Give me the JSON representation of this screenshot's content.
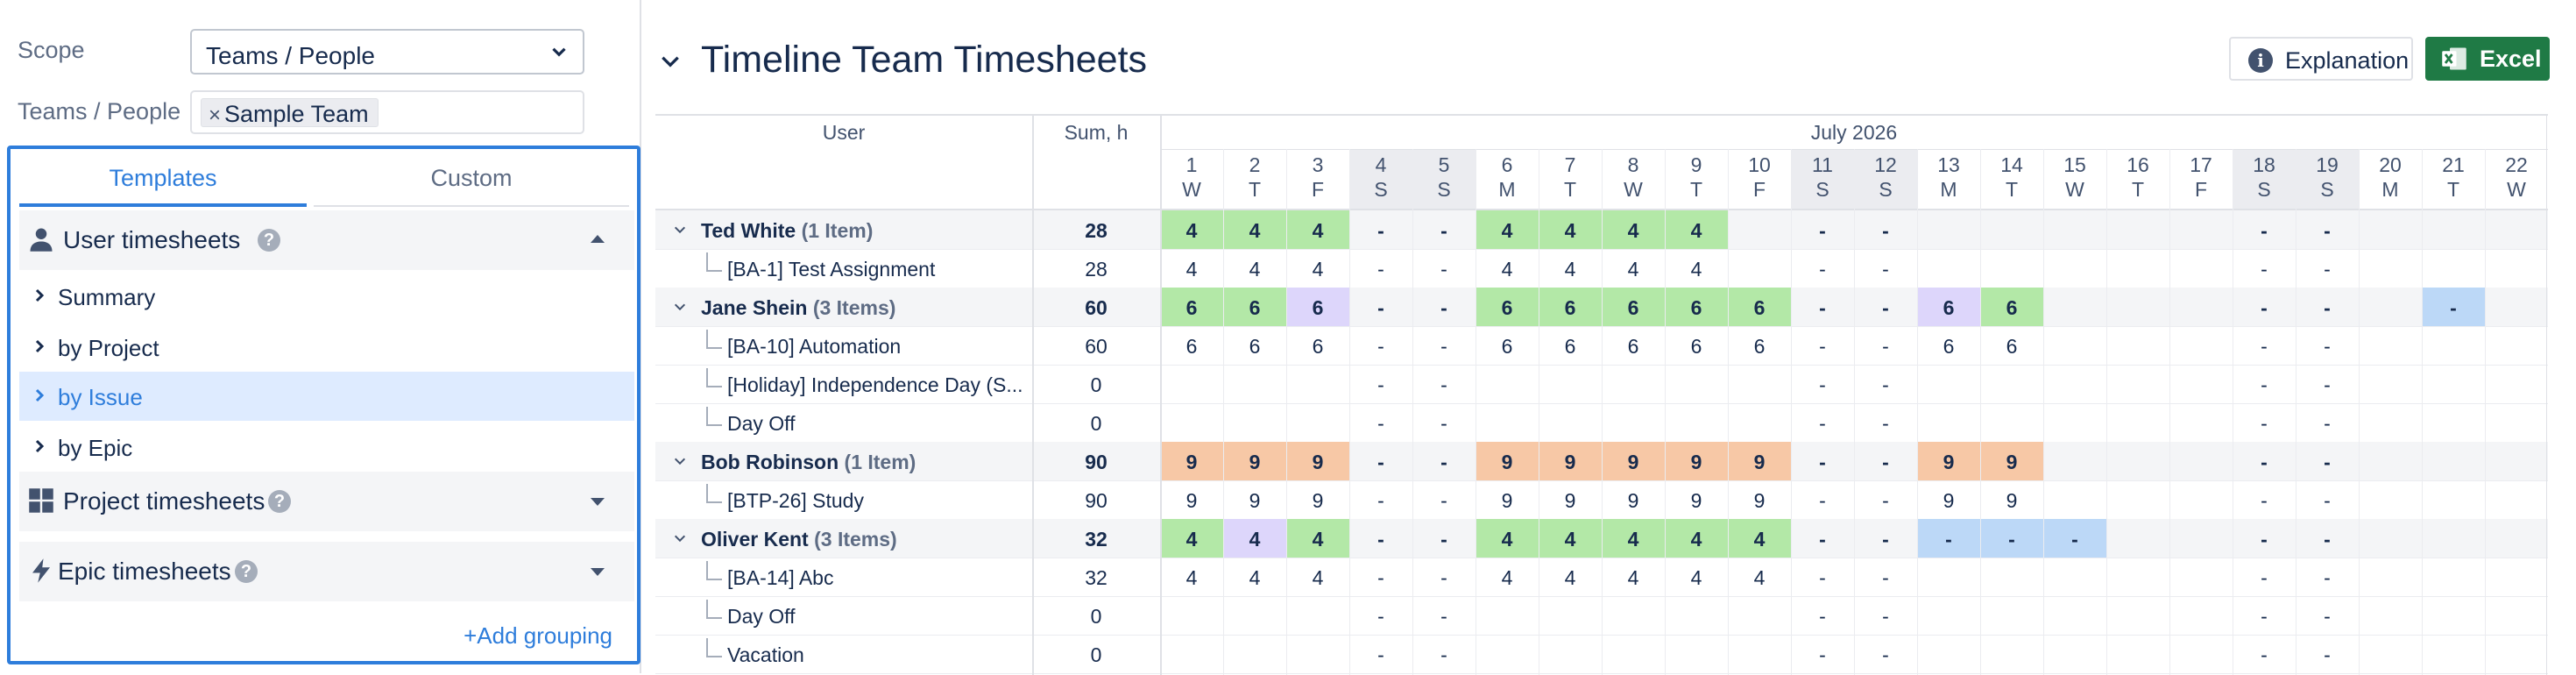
{
  "filters": {
    "scope_label": "Scope",
    "scope_value": "Teams / People",
    "teams_label": "Teams / People",
    "team_tag": "Sample Team",
    "tag_remove": "×"
  },
  "templates": {
    "tabs": [
      "Templates",
      "Custom"
    ],
    "sections": [
      {
        "name": "User timesheets",
        "icon": "person-icon",
        "expanded": true,
        "items": [
          "Summary",
          "by Project",
          "by Issue",
          "by Epic"
        ],
        "active_item": "by Issue"
      },
      {
        "name": "Project timesheets",
        "icon": "grid-icon",
        "expanded": false
      },
      {
        "name": "Epic timesheets",
        "icon": "bolt-icon",
        "expanded": false
      }
    ],
    "help_glyph": "?",
    "add_grouping": "+Add grouping"
  },
  "report": {
    "title": "Timeline Team Timesheets",
    "explanation_btn": "Explanation",
    "info_glyph": "i",
    "excel_btn": "Excel",
    "col_user": "User",
    "col_sum": "Sum, h",
    "month": "July 2026",
    "days": [
      {
        "d": "1",
        "w": "W",
        "we": false
      },
      {
        "d": "2",
        "w": "T",
        "we": false
      },
      {
        "d": "3",
        "w": "F",
        "we": false
      },
      {
        "d": "4",
        "w": "S",
        "we": true
      },
      {
        "d": "5",
        "w": "S",
        "we": true
      },
      {
        "d": "6",
        "w": "M",
        "we": false
      },
      {
        "d": "7",
        "w": "T",
        "we": false
      },
      {
        "d": "8",
        "w": "W",
        "we": false
      },
      {
        "d": "9",
        "w": "T",
        "we": false
      },
      {
        "d": "10",
        "w": "F",
        "we": false
      },
      {
        "d": "11",
        "w": "S",
        "we": true
      },
      {
        "d": "12",
        "w": "S",
        "we": true
      },
      {
        "d": "13",
        "w": "M",
        "we": false
      },
      {
        "d": "14",
        "w": "T",
        "we": false
      },
      {
        "d": "15",
        "w": "W",
        "we": false
      },
      {
        "d": "16",
        "w": "T",
        "we": false
      },
      {
        "d": "17",
        "w": "F",
        "we": false
      },
      {
        "d": "18",
        "w": "S",
        "we": true
      },
      {
        "d": "19",
        "w": "S",
        "we": true
      },
      {
        "d": "20",
        "w": "M",
        "we": false
      },
      {
        "d": "21",
        "w": "T",
        "we": false
      },
      {
        "d": "22",
        "w": "W",
        "we": false
      }
    ],
    "colors": {
      "green": "#b3e8a7",
      "purple": "#ddd6fb",
      "orange": "#f7c8a6",
      "blue": "#bcd8f7",
      "weekend": "#ebecf0",
      "userrow": "#f4f5f7"
    },
    "rows": [
      {
        "type": "user",
        "name": "Ted White",
        "count": "(1 Item)",
        "sum": "28",
        "cells": [
          "4",
          "4",
          "4",
          "-",
          "-",
          "4",
          "4",
          "4",
          "4",
          "",
          "-",
          "-",
          "",
          "",
          "",
          "",
          "",
          "-",
          "-",
          "",
          "",
          ""
        ],
        "colors": [
          "green",
          "green",
          "green",
          "",
          "",
          "green",
          "green",
          "green",
          "green",
          "",
          "",
          "",
          "",
          "",
          "",
          "",
          "",
          "",
          "",
          "",
          "",
          ""
        ]
      },
      {
        "type": "item",
        "name": "[BA-1] Test Assignment",
        "sum": "28",
        "cells": [
          "4",
          "4",
          "4",
          "-",
          "-",
          "4",
          "4",
          "4",
          "4",
          "",
          "-",
          "-",
          "",
          "",
          "",
          "",
          "",
          "-",
          "-",
          "",
          "",
          ""
        ]
      },
      {
        "type": "user",
        "name": "Jane Shein",
        "count": "(3 Items)",
        "sum": "60",
        "cells": [
          "6",
          "6",
          "6",
          "-",
          "-",
          "6",
          "6",
          "6",
          "6",
          "6",
          "-",
          "-",
          "6",
          "6",
          "",
          "",
          "",
          "-",
          "-",
          "",
          "-",
          ""
        ],
        "colors": [
          "green",
          "green",
          "purple",
          "",
          "",
          "green",
          "green",
          "green",
          "green",
          "green",
          "",
          "",
          "purple",
          "green",
          "",
          "",
          "",
          "",
          "",
          "",
          "blue",
          ""
        ]
      },
      {
        "type": "item",
        "name": "[BA-10] Automation",
        "sum": "60",
        "cells": [
          "6",
          "6",
          "6",
          "-",
          "-",
          "6",
          "6",
          "6",
          "6",
          "6",
          "-",
          "-",
          "6",
          "6",
          "",
          "",
          "",
          "-",
          "-",
          "",
          "",
          ""
        ]
      },
      {
        "type": "item",
        "name": "[Holiday] Independence Day (S...",
        "sum": "0",
        "cells": [
          "",
          "",
          "",
          "-",
          "-",
          "",
          "",
          "",
          "",
          "",
          "-",
          "-",
          "",
          "",
          "",
          "",
          "",
          "-",
          "-",
          "",
          "",
          ""
        ]
      },
      {
        "type": "item",
        "name": "Day Off",
        "sum": "0",
        "cells": [
          "",
          "",
          "",
          "-",
          "-",
          "",
          "",
          "",
          "",
          "",
          "-",
          "-",
          "",
          "",
          "",
          "",
          "",
          "-",
          "-",
          "",
          "",
          ""
        ]
      },
      {
        "type": "user",
        "name": "Bob Robinson",
        "count": "(1 Item)",
        "sum": "90",
        "cells": [
          "9",
          "9",
          "9",
          "-",
          "-",
          "9",
          "9",
          "9",
          "9",
          "9",
          "-",
          "-",
          "9",
          "9",
          "",
          "",
          "",
          "-",
          "-",
          "",
          "",
          ""
        ],
        "colors": [
          "orange",
          "orange",
          "orange",
          "",
          "",
          "orange",
          "orange",
          "orange",
          "orange",
          "orange",
          "",
          "",
          "orange",
          "orange",
          "",
          "",
          "",
          "",
          "",
          "",
          "",
          ""
        ]
      },
      {
        "type": "item",
        "name": "[BTP-26] Study",
        "sum": "90",
        "cells": [
          "9",
          "9",
          "9",
          "-",
          "-",
          "9",
          "9",
          "9",
          "9",
          "9",
          "-",
          "-",
          "9",
          "9",
          "",
          "",
          "",
          "-",
          "-",
          "",
          "",
          ""
        ]
      },
      {
        "type": "user",
        "name": "Oliver Kent",
        "count": "(3 Items)",
        "sum": "32",
        "cells": [
          "4",
          "4",
          "4",
          "-",
          "-",
          "4",
          "4",
          "4",
          "4",
          "4",
          "-",
          "-",
          "-",
          "-",
          "-",
          "",
          "",
          "-",
          "-",
          "",
          "",
          ""
        ],
        "colors": [
          "green",
          "purple",
          "green",
          "",
          "",
          "green",
          "green",
          "green",
          "green",
          "green",
          "",
          "",
          "blue",
          "blue",
          "blue",
          "",
          "",
          "",
          "",
          "",
          "",
          ""
        ]
      },
      {
        "type": "item",
        "name": "[BA-14] Abc",
        "sum": "32",
        "cells": [
          "4",
          "4",
          "4",
          "-",
          "-",
          "4",
          "4",
          "4",
          "4",
          "4",
          "-",
          "-",
          "",
          "",
          "",
          "",
          "",
          "-",
          "-",
          "",
          "",
          ""
        ]
      },
      {
        "type": "item",
        "name": "Day Off",
        "sum": "0",
        "cells": [
          "",
          "",
          "",
          "-",
          "-",
          "",
          "",
          "",
          "",
          "",
          "-",
          "-",
          "",
          "",
          "",
          "",
          "",
          "-",
          "-",
          "",
          "",
          ""
        ]
      },
      {
        "type": "item",
        "name": "Vacation",
        "sum": "0",
        "cells": [
          "",
          "",
          "",
          "-",
          "-",
          "",
          "",
          "",
          "",
          "",
          "-",
          "-",
          "",
          "",
          "",
          "",
          "",
          "-",
          "-",
          "",
          "",
          ""
        ]
      }
    ]
  }
}
